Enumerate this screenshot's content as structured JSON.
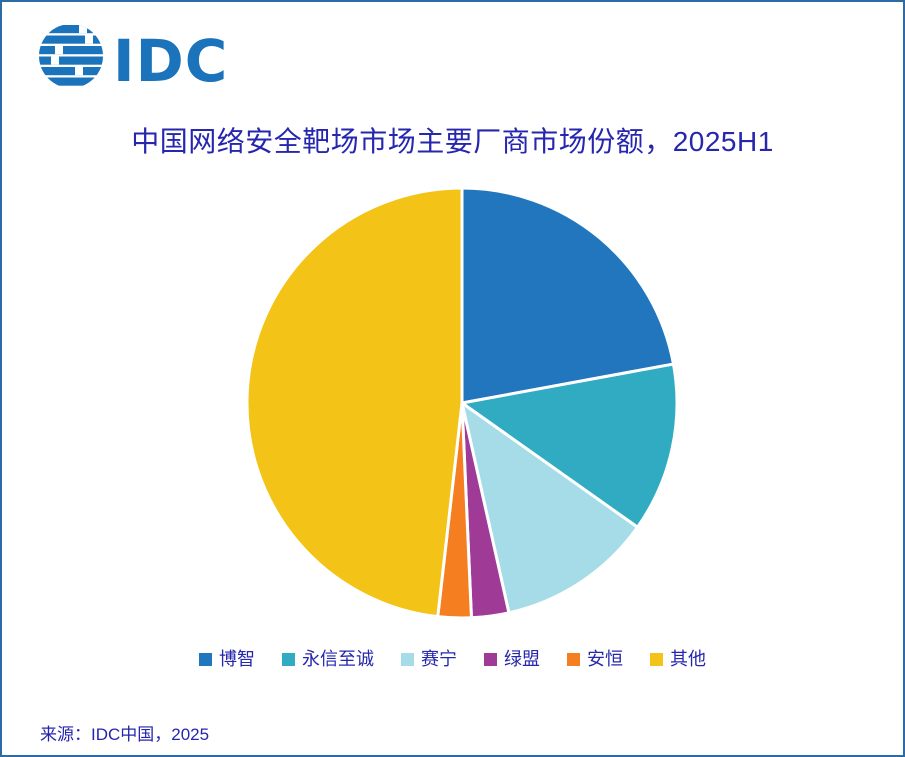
{
  "page": {
    "title": "中国网络安全靶场市场主要厂商市场份额，2025H1",
    "source": "来源：IDC中国，2025"
  },
  "logo": {
    "text": "IDC",
    "color": "#1b74bb"
  },
  "colors": {
    "title_text": "#2626ae",
    "frame_border": "#2b6ca5",
    "slice_gap": "#ffffff"
  },
  "chart_data": {
    "type": "pie",
    "title": "中国网络安全靶场市场主要厂商市场份额，2025H1",
    "categories": [
      "博智",
      "永信至诚",
      "赛宁",
      "绿盟",
      "安恒",
      "其他"
    ],
    "values": [
      22.1,
      12.7,
      11.7,
      2.8,
      2.5,
      48.2
    ],
    "colors": [
      "#2176bd",
      "#31abc2",
      "#a5dce8",
      "#a03a97",
      "#f47e20",
      "#f3c317"
    ],
    "unit": "percent",
    "start_angle_deg": 0,
    "direction": "clockwise",
    "legend_position": "bottom",
    "data_labels": false,
    "source": "来源：IDC中国，2025"
  }
}
